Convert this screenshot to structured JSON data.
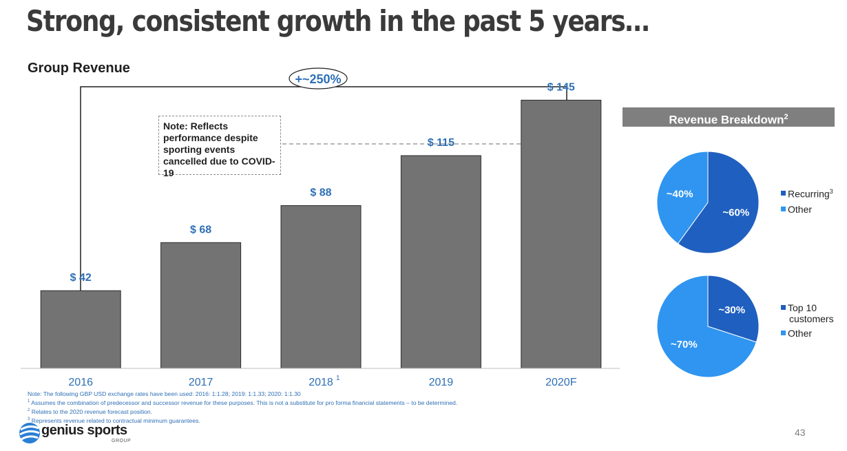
{
  "title": "Strong, consistent growth in the past 5 years…",
  "subtitle": "Group Revenue",
  "growth_label": "+~250%",
  "note": "Note: Reflects performance despite sporting events cancelled due to COVID-19",
  "breakdown_header": "Revenue Breakdown",
  "breakdown_header_sup": "2",
  "footnotes": {
    "note": "Note: The following GBP USD exchange rates have been used: 2016: 1:1.28; 2019: 1:1.33; 2020: 1:1.30",
    "f1_mark": "1",
    "f1": "Assumes the combination of predecessor and successor revenue for these purposes. This is not a substitute for pro forma financial statements – to be determined.",
    "f2_mark": "2",
    "f2": "Relates to the 2020 revenue forecast position.",
    "f3_mark": "3",
    "f3": "Represents revenue related to contractual minimum guarantees."
  },
  "page_number": "43",
  "logo": {
    "text": "genius sports",
    "sub": "GROUP"
  },
  "colors": {
    "bar": "#737373",
    "value_label": "#2e6fb5",
    "pie_dark": "#1f5fbf",
    "pie_light": "#2f95f0"
  },
  "chart_data": [
    {
      "type": "bar",
      "categories": [
        "2016",
        "2017",
        "2018",
        "2019",
        "2020F"
      ],
      "category_sups": [
        "",
        "",
        "1",
        "",
        ""
      ],
      "values": [
        42,
        68,
        88,
        115,
        145
      ],
      "value_labels": [
        "$ 42",
        "$ 68",
        "$ 88",
        "$ 115",
        "$ 145"
      ],
      "ylim": [
        0,
        150
      ],
      "grid": false
    },
    {
      "type": "pie",
      "slices": [
        {
          "name": "Recurring",
          "name_sup": "3",
          "value": 60,
          "label": "~60%",
          "color": "#1f5fbf"
        },
        {
          "name": "Other",
          "value": 40,
          "label": "~40%",
          "color": "#2f95f0"
        }
      ],
      "legend": "right"
    },
    {
      "type": "pie",
      "slices": [
        {
          "name": "Top 10 customers",
          "name_lines": [
            "Top 10",
            "customers"
          ],
          "value": 30,
          "label": "~30%",
          "color": "#1f5fbf"
        },
        {
          "name": "Other",
          "value": 70,
          "label": "~70%",
          "color": "#2f95f0"
        }
      ],
      "legend": "right"
    }
  ]
}
